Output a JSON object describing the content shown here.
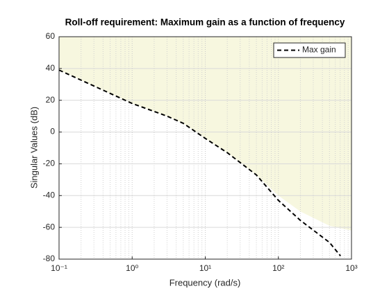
{
  "chart_data": {
    "type": "line",
    "title": "Roll-off requirement: Maximum gain as a function of frequency",
    "xlabel": "Frequency (rad/s)",
    "ylabel": "Singular Values (dB)",
    "xscale": "log",
    "xlim": [
      0.1,
      1000
    ],
    "ylim": [
      -80,
      60
    ],
    "xticks": [
      {
        "value": 0.1,
        "label": "10⁻¹"
      },
      {
        "value": 1,
        "label": "10⁰"
      },
      {
        "value": 10,
        "label": "10¹"
      },
      {
        "value": 100,
        "label": "10²"
      },
      {
        "value": 1000,
        "label": "10³"
      }
    ],
    "yticks": [
      -80,
      -60,
      -40,
      -20,
      0,
      20,
      40,
      60
    ],
    "grid": true,
    "legend": "northeast",
    "shade": {
      "color": "#f7f7df",
      "x": [
        0.1,
        1,
        3,
        5,
        10,
        20,
        50,
        100,
        200,
        500,
        1000
      ],
      "lower": [
        39,
        18,
        10,
        5.5,
        -4,
        -13,
        -27,
        -40,
        -50,
        -59,
        -62
      ]
    },
    "x": [
      0.1,
      1,
      3,
      5,
      10,
      20,
      50,
      100,
      200,
      500,
      708
    ],
    "series": [
      {
        "name": "Max gain",
        "color": "#000000",
        "values": [
          39,
          18,
          10,
          5.5,
          -4,
          -13,
          -27,
          -43,
          -55.6,
          -69.5,
          -78
        ]
      }
    ]
  }
}
